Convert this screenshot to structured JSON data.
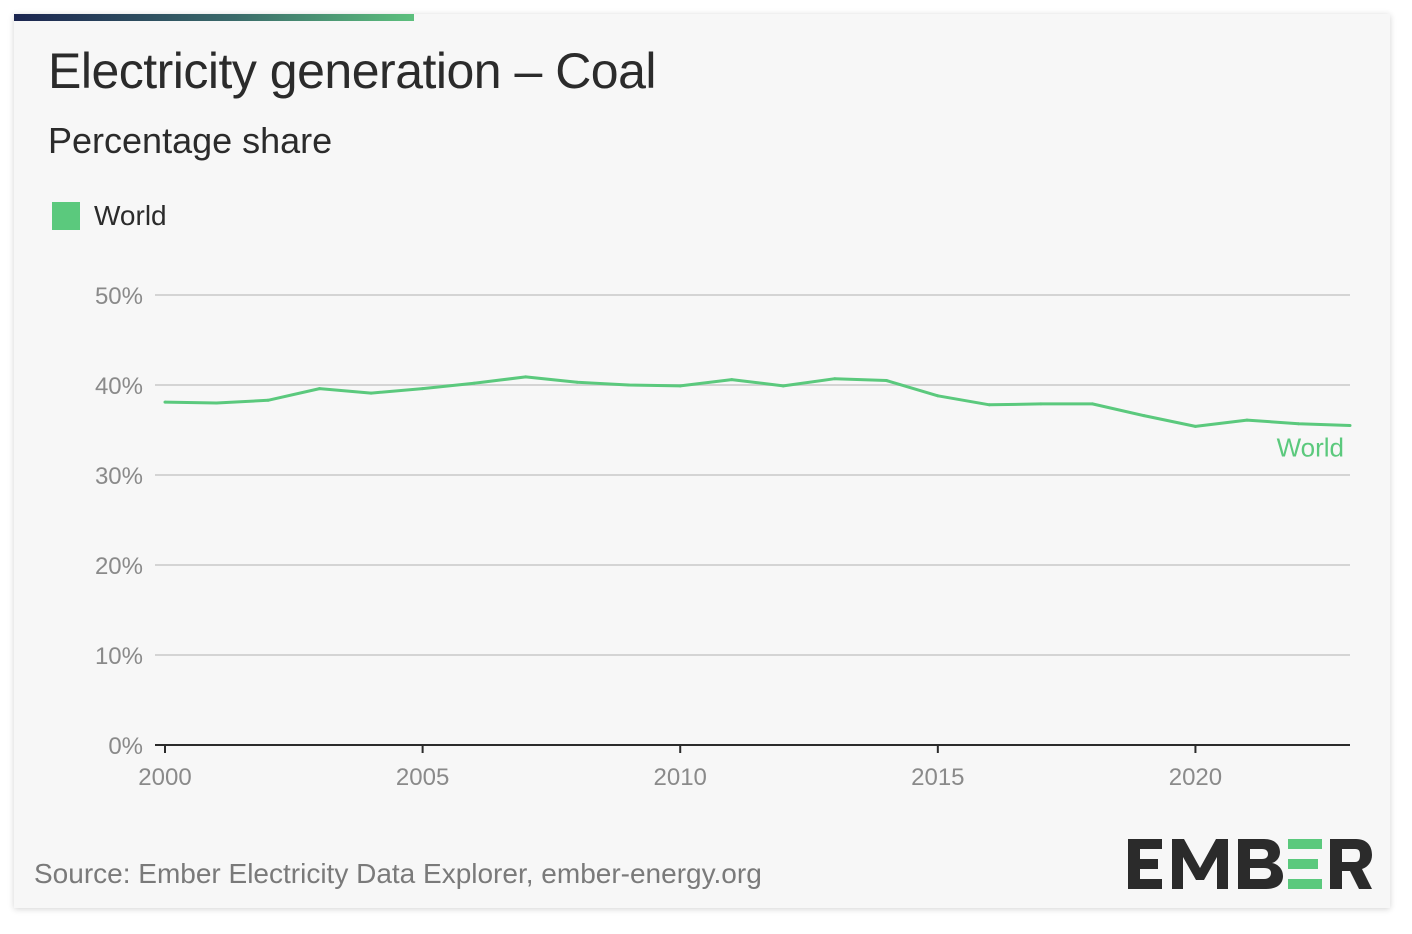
{
  "header": {
    "title": "Electricity generation – Coal",
    "subtitle": "Percentage share"
  },
  "legend": {
    "label": "World",
    "color": "#5bc97d"
  },
  "footer": {
    "source": "Source: Ember Electricity Data Explorer, ember-energy.org",
    "logo_text": "EMBER"
  },
  "chart_data": {
    "type": "line",
    "title": "Electricity generation – Coal",
    "subtitle": "Percentage share",
    "xlabel": "",
    "ylabel": "",
    "xlim": [
      2000,
      2023
    ],
    "ylim": [
      0,
      50
    ],
    "y_ticks": [
      "0%",
      "10%",
      "20%",
      "30%",
      "40%",
      "50%"
    ],
    "x_ticks": [
      "2000",
      "2005",
      "2010",
      "2015",
      "2020"
    ],
    "grid": true,
    "legend_position": "top-left",
    "series": [
      {
        "name": "World",
        "color": "#5bc97d",
        "end_label": "World",
        "x": [
          2000,
          2001,
          2002,
          2003,
          2004,
          2005,
          2006,
          2007,
          2008,
          2009,
          2010,
          2011,
          2012,
          2013,
          2014,
          2015,
          2016,
          2017,
          2018,
          2019,
          2020,
          2021,
          2022,
          2023
        ],
        "y": [
          38.1,
          38.0,
          38.3,
          39.6,
          39.1,
          39.6,
          40.2,
          40.9,
          40.3,
          40.0,
          39.9,
          40.6,
          39.9,
          40.7,
          40.5,
          38.8,
          37.8,
          37.9,
          37.9,
          36.6,
          35.4,
          36.1,
          35.7,
          35.5
        ]
      }
    ]
  }
}
